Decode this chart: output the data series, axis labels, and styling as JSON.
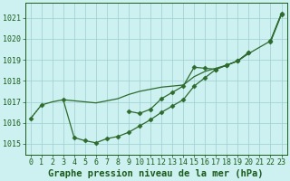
{
  "title": "Graphe pression niveau de la mer (hPa)",
  "x_values": [
    0,
    1,
    2,
    3,
    4,
    5,
    6,
    7,
    8,
    9,
    10,
    11,
    12,
    13,
    14,
    15,
    16,
    17,
    18,
    19,
    20,
    21,
    22,
    23
  ],
  "line1_smooth": [
    1016.2,
    1016.85,
    1017.0,
    1017.1,
    1017.05,
    1017.0,
    1016.95,
    1017.05,
    1017.15,
    1017.35,
    1017.5,
    1017.6,
    1017.7,
    1017.75,
    1017.8,
    1018.2,
    1018.45,
    1018.6,
    1018.75,
    1018.95,
    1019.3,
    1019.6,
    1019.9,
    1021.2
  ],
  "line2_dip_markers": [
    null,
    null,
    null,
    1017.1,
    1015.3,
    1015.15,
    1015.05,
    1015.25,
    1015.35,
    1015.55,
    1015.85,
    1016.15,
    1016.5,
    1016.8,
    1017.1,
    1017.75,
    1018.15,
    1018.55,
    1018.75,
    1018.95,
    1019.35,
    null,
    1019.9,
    1021.2
  ],
  "line3_mid_markers": [
    null,
    null,
    null,
    null,
    null,
    null,
    null,
    null,
    null,
    1016.55,
    1016.45,
    1016.65,
    1017.15,
    1017.45,
    1017.75,
    1018.65,
    1018.6,
    1018.55,
    1018.75,
    1018.95,
    1019.35,
    null,
    1019.85,
    1021.15
  ],
  "line4_dotted_start": [
    1016.2,
    1016.85,
    null,
    null,
    null,
    null,
    null,
    null,
    null,
    null,
    null,
    null,
    null,
    null,
    null,
    null,
    null,
    null,
    null,
    null,
    null,
    null,
    null,
    null
  ],
  "color": "#2d6a2d",
  "marker": "D",
  "marker_size": 2.5,
  "ylim": [
    1014.5,
    1021.7
  ],
  "yticks": [
    1015,
    1016,
    1017,
    1018,
    1019,
    1020,
    1021
  ],
  "xlim": [
    -0.5,
    23.5
  ],
  "bg_color": "#cdf0f0",
  "grid_color": "#9dcfcf",
  "text_color": "#1a5c1a",
  "title_fontsize": 7.5,
  "tick_fontsize": 6
}
